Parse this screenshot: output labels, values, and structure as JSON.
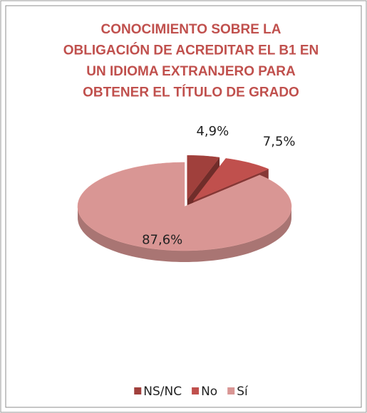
{
  "chart_data": {
    "type": "pie3d",
    "title": [
      "CONOCIMIENTO SOBRE LA",
      "OBLIGACIÓN DE ACREDITAR EL B1 EN",
      "UN IDIOMA EXTRANJERO PARA",
      "OBTENER EL TÍTULO DE GRADO"
    ],
    "categories": [
      "NS/NC",
      "No",
      "Sí"
    ],
    "values": [
      4.9,
      7.5,
      87.6
    ],
    "value_labels": [
      "4,9%",
      "7,5%",
      "87,6%"
    ],
    "colors": [
      "#a0403c",
      "#c0504d",
      "#d99694"
    ],
    "exploded": [
      true,
      true,
      false
    ],
    "legend": "bottom"
  }
}
